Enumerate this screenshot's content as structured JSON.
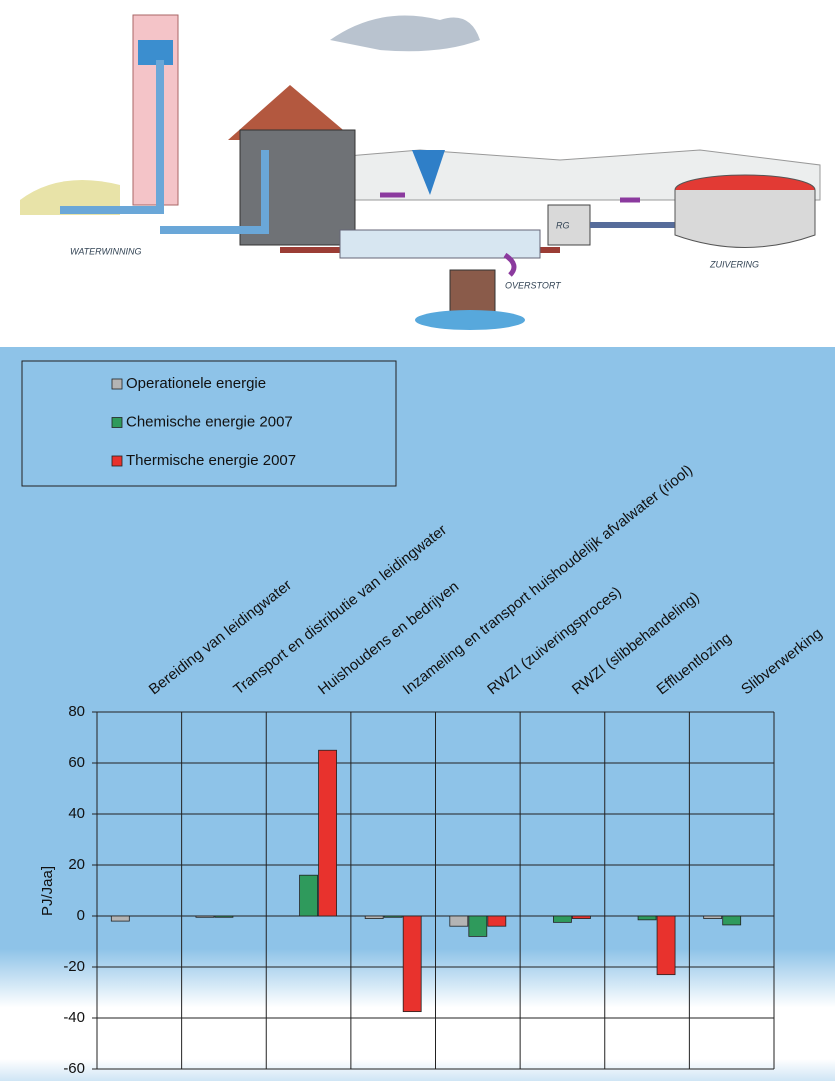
{
  "illustration": {
    "labels": [
      "WATERWINNING",
      "RG",
      "OVERSTORT",
      "ZUIVERING"
    ]
  },
  "chart_data": {
    "type": "bar",
    "y_label": "PJ/Jaa]",
    "categories": [
      "Bereiding van leidingwater",
      "Transport en distributie van leidingwater",
      "Huishoudens en bedrijven",
      "Inzameling en transport huishoudelijk afvalwater (riool)",
      "RWZI (zuiveringsproces)",
      "RWZI (slibbehandeling)",
      "Effluentlozing",
      "Slibverwerking"
    ],
    "series": [
      {
        "name": "Operationele energie",
        "color": "#b4b4b4",
        "values": [
          -2,
          -0.5,
          0,
          -1,
          -4,
          0,
          0,
          -1
        ]
      },
      {
        "name": "Chemische energie 2007",
        "color": "#2f9a5c",
        "values": [
          0,
          -0.5,
          16,
          -0.5,
          -8,
          -2.5,
          -1.5,
          -3.5
        ]
      },
      {
        "name": "Thermische energie 2007",
        "color": "#e8322d",
        "values": [
          0,
          0,
          65,
          -37.5,
          -4,
          -1,
          -23,
          0
        ]
      }
    ],
    "ylim": [
      -60,
      80
    ],
    "yticks": [
      -60,
      -40,
      -20,
      0,
      20,
      40,
      60,
      80
    ],
    "grid": true,
    "legend": "top-left"
  }
}
